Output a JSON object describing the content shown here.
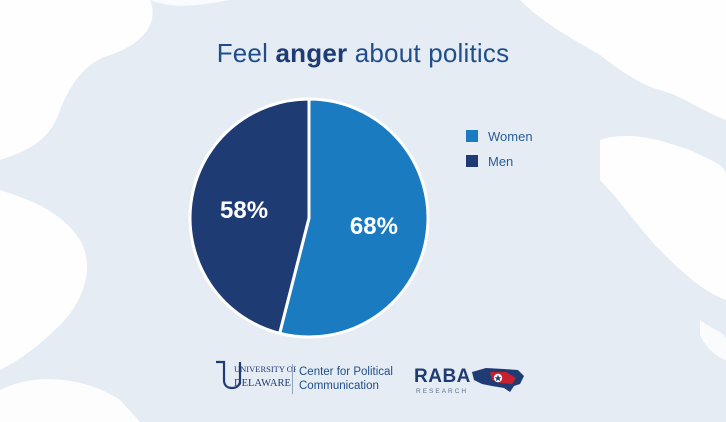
{
  "title": {
    "prefix": "Feel ",
    "emphasis": "anger",
    "suffix": " about politics"
  },
  "chart_data": {
    "type": "pie",
    "title": "Feel anger about politics",
    "series": [
      {
        "name": "Women",
        "value": 68,
        "label": "68%",
        "color": "#1a7bc0"
      },
      {
        "name": "Men",
        "value": 58,
        "label": "58%",
        "color": "#1f3b73"
      }
    ],
    "legend_position": "right"
  },
  "legend": {
    "items": [
      {
        "label": "Women",
        "color": "#1a7bc0"
      },
      {
        "label": "Men",
        "color": "#1f3b73"
      }
    ]
  },
  "logos": {
    "university_line1": "UNIVERSITY OF",
    "university_line2": "DELAWARE",
    "center_line1": "Center for Political",
    "center_line2": "Communication",
    "raba": "RABA",
    "raba_sub": "RESEARCH"
  }
}
